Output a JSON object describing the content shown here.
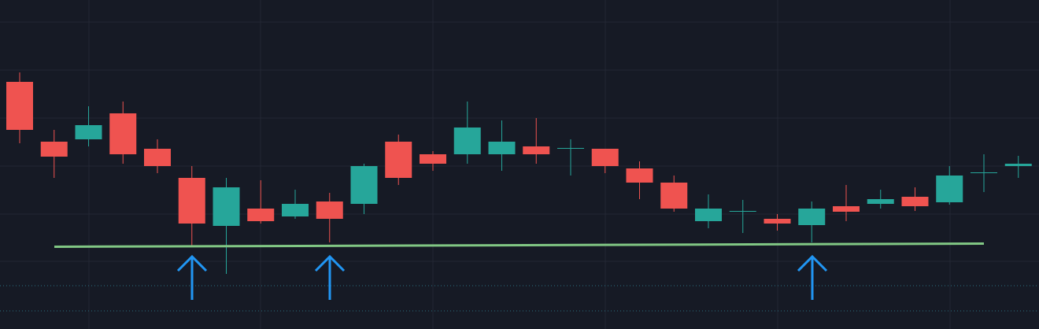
{
  "chart_data": {
    "type": "candlestick",
    "open": [
      31.4,
      23.8,
      24.1,
      27.4,
      22.9,
      19.2,
      13.1,
      15.3,
      14.3,
      16.2,
      15.9,
      23.8,
      22.2,
      22.2,
      22.2,
      23.2,
      22.9,
      22.9,
      20.4,
      18.6,
      13.7,
      14.9,
      14.0,
      13.2,
      15.6,
      15.9,
      16.8,
      16.1,
      19.8,
      20.7
    ],
    "high": [
      32.6,
      25.3,
      28.3,
      28.9,
      24.1,
      20.7,
      19.2,
      18.9,
      17.7,
      17.3,
      21.0,
      24.7,
      22.6,
      28.9,
      26.5,
      26.8,
      24.1,
      22.9,
      21.3,
      19.5,
      17.1,
      16.4,
      14.6,
      16.2,
      18.3,
      17.7,
      18.0,
      20.7,
      22.2,
      22.0
    ],
    "low": [
      23.6,
      19.2,
      23.2,
      21.0,
      19.8,
      10.6,
      7.0,
      13.4,
      14.0,
      11.0,
      14.6,
      18.3,
      20.1,
      21.0,
      20.1,
      21.0,
      19.5,
      19.8,
      16.5,
      14.9,
      12.8,
      12.2,
      12.5,
      11.0,
      13.7,
      15.3,
      15.0,
      15.8,
      17.4,
      19.2
    ],
    "close": [
      25.3,
      21.9,
      25.9,
      22.2,
      20.7,
      13.4,
      18.0,
      13.7,
      15.9,
      14.0,
      20.7,
      19.2,
      21.0,
      25.6,
      23.8,
      22.2,
      23.0,
      20.7,
      18.6,
      15.3,
      15.3,
      15.0,
      13.4,
      15.3,
      14.9,
      16.5,
      15.6,
      19.5,
      19.9,
      21.0
    ],
    "up_color": "#26a69a",
    "down_color": "#ef5350",
    "ylim": [
      0,
      41.8
    ]
  }
}
